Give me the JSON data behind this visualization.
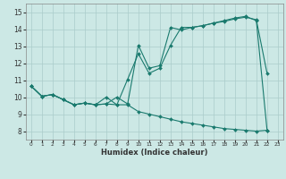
{
  "xlabel": "Humidex (Indice chaleur)",
  "bg_color": "#cce8e5",
  "grid_color": "#aaccca",
  "line_color": "#1a7a6e",
  "xlim": [
    -0.5,
    23.5
  ],
  "ylim": [
    7.5,
    15.5
  ],
  "xticks": [
    0,
    1,
    2,
    3,
    4,
    5,
    6,
    7,
    8,
    9,
    10,
    11,
    12,
    13,
    14,
    15,
    16,
    17,
    18,
    19,
    20,
    21,
    22,
    23
  ],
  "yticks": [
    8,
    9,
    10,
    11,
    12,
    13,
    14,
    15
  ],
  "curve1_x": [
    0,
    1,
    2,
    3,
    4,
    5,
    6,
    7,
    8,
    9,
    10,
    11,
    12,
    13,
    14,
    15,
    16,
    17,
    18,
    19,
    20,
    21,
    22
  ],
  "curve1_y": [
    10.65,
    10.05,
    10.15,
    9.85,
    9.55,
    9.65,
    9.55,
    9.6,
    9.55,
    9.55,
    9.15,
    9.0,
    8.85,
    8.7,
    8.55,
    8.45,
    8.35,
    8.25,
    8.15,
    8.1,
    8.05,
    8.0,
    8.05
  ],
  "curve2_x": [
    0,
    1,
    2,
    3,
    4,
    5,
    6,
    7,
    8,
    9,
    10,
    11,
    12,
    13,
    14,
    15,
    16,
    17,
    18,
    19,
    20,
    21,
    22
  ],
  "curve2_y": [
    10.65,
    10.05,
    10.15,
    9.85,
    9.55,
    9.65,
    9.55,
    10.0,
    9.55,
    11.05,
    12.55,
    11.4,
    11.7,
    13.05,
    14.1,
    14.1,
    14.2,
    14.35,
    14.45,
    14.6,
    14.7,
    14.55,
    11.4
  ],
  "curve3_x": [
    0,
    1,
    2,
    3,
    4,
    5,
    6,
    7,
    8,
    9,
    10,
    11,
    12,
    13,
    14,
    15,
    16,
    17,
    18,
    19,
    20,
    21,
    22
  ],
  "curve3_y": [
    10.65,
    10.05,
    10.15,
    9.85,
    9.55,
    9.65,
    9.55,
    9.6,
    10.0,
    9.6,
    13.05,
    11.7,
    11.85,
    14.1,
    13.95,
    14.1,
    14.2,
    14.35,
    14.5,
    14.65,
    14.75,
    14.5,
    8.05
  ]
}
